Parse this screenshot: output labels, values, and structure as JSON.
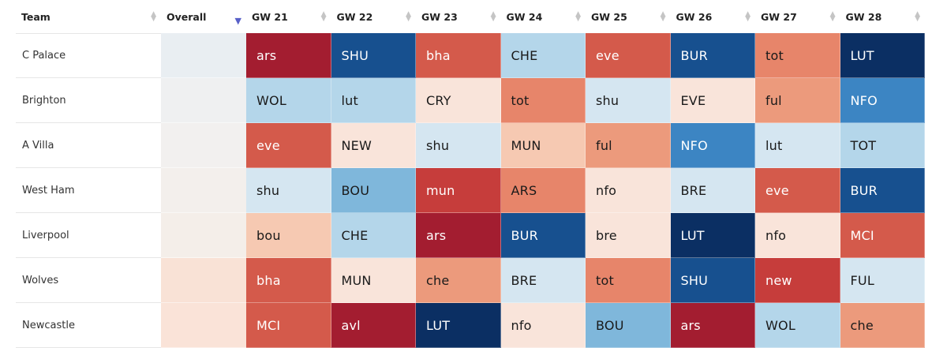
{
  "header": {
    "team": "Team",
    "overall": "Overall",
    "gameweeks": [
      "GW 21",
      "GW 22",
      "GW 23",
      "GW 24",
      "GW 25",
      "GW 26",
      "GW 27",
      "GW 28"
    ]
  },
  "colors": {
    "1": "#0b2f63",
    "2": "#17508f",
    "3": "#3c85c3",
    "4": "#7fb7db",
    "5": "#b4d6ea",
    "6": "#d5e6f1",
    "7": "#f9e4da",
    "8": "#f6c9b2",
    "9": "#ec9a7c",
    "10": "#e7856a",
    "11": "#d45a4b",
    "12": "#c63d3b",
    "13": "#a31d30"
  },
  "rows": [
    {
      "team": "C Palace",
      "overall_color": "#e9eef2",
      "fixtures": [
        {
          "label": "ars",
          "level": 13
        },
        {
          "label": "SHU",
          "level": 2
        },
        {
          "label": "bha",
          "level": 11
        },
        {
          "label": "CHE",
          "level": 5
        },
        {
          "label": "eve",
          "level": 11
        },
        {
          "label": "BUR",
          "level": 2
        },
        {
          "label": "tot",
          "level": 10
        },
        {
          "label": "LUT",
          "level": 1
        }
      ]
    },
    {
      "team": "Brighton",
      "overall_color": "#eff0f1",
      "fixtures": [
        {
          "label": "WOL",
          "level": 5
        },
        {
          "label": "lut",
          "level": 5
        },
        {
          "label": "CRY",
          "level": 7
        },
        {
          "label": "tot",
          "level": 10
        },
        {
          "label": "shu",
          "level": 6
        },
        {
          "label": "EVE",
          "level": 7
        },
        {
          "label": "ful",
          "level": 9
        },
        {
          "label": "NFO",
          "level": 3
        }
      ]
    },
    {
      "team": "A Villa",
      "overall_color": "#f2f0ef",
      "fixtures": [
        {
          "label": "eve",
          "level": 11
        },
        {
          "label": "NEW",
          "level": 7
        },
        {
          "label": "shu",
          "level": 6
        },
        {
          "label": "MUN",
          "level": 8
        },
        {
          "label": "ful",
          "level": 9
        },
        {
          "label": "NFO",
          "level": 3
        },
        {
          "label": "lut",
          "level": 6
        },
        {
          "label": "TOT",
          "level": 5
        }
      ]
    },
    {
      "team": "West Ham",
      "overall_color": "#f3efec",
      "fixtures": [
        {
          "label": "shu",
          "level": 6
        },
        {
          "label": "BOU",
          "level": 4
        },
        {
          "label": "mun",
          "level": 12
        },
        {
          "label": "ARS",
          "level": 10
        },
        {
          "label": "nfo",
          "level": 7
        },
        {
          "label": "BRE",
          "level": 6
        },
        {
          "label": "eve",
          "level": 11
        },
        {
          "label": "BUR",
          "level": 2
        }
      ]
    },
    {
      "team": "Liverpool",
      "overall_color": "#f4eee9",
      "fixtures": [
        {
          "label": "bou",
          "level": 8
        },
        {
          "label": "CHE",
          "level": 5
        },
        {
          "label": "ars",
          "level": 13
        },
        {
          "label": "BUR",
          "level": 2
        },
        {
          "label": "bre",
          "level": 7
        },
        {
          "label": "LUT",
          "level": 1
        },
        {
          "label": "nfo",
          "level": 7
        },
        {
          "label": "MCI",
          "level": 11
        }
      ]
    },
    {
      "team": "Wolves",
      "overall_color": "#f9e2d6",
      "fixtures": [
        {
          "label": "bha",
          "level": 11
        },
        {
          "label": "MUN",
          "level": 7
        },
        {
          "label": "che",
          "level": 9
        },
        {
          "label": "BRE",
          "level": 6
        },
        {
          "label": "tot",
          "level": 10
        },
        {
          "label": "SHU",
          "level": 2
        },
        {
          "label": "new",
          "level": 12
        },
        {
          "label": "FUL",
          "level": 6
        }
      ]
    },
    {
      "team": "Newcastle",
      "overall_color": "#fae3d8",
      "fixtures": [
        {
          "label": "MCI",
          "level": 11
        },
        {
          "label": "avl",
          "level": 13
        },
        {
          "label": "LUT",
          "level": 1
        },
        {
          "label": "nfo",
          "level": 7
        },
        {
          "label": "BOU",
          "level": 4
        },
        {
          "label": "ars",
          "level": 13
        },
        {
          "label": "WOL",
          "level": 5
        },
        {
          "label": "che",
          "level": 9
        }
      ]
    }
  ]
}
